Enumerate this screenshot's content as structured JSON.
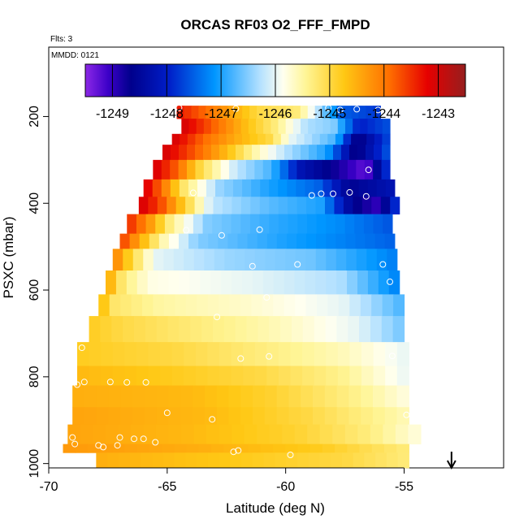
{
  "title": "ORCAS RF03 O2_FFF_FMPD",
  "flights_label": "Flts: 3",
  "date_label": "MMDD: 0121",
  "colorbar": {
    "ticks": [
      "-1249",
      "-1248",
      "-1247",
      "-1246",
      "-1245",
      "-1244",
      "-1243"
    ],
    "range": [
      -1249.5,
      -1242.5
    ]
  },
  "chart_data": {
    "type": "heatmap",
    "xlabel": "Latitude (deg N)",
    "ylabel": "PSXC (mbar)",
    "xlim": [
      -70,
      -50.8
    ],
    "ylim": [
      1010,
      40
    ],
    "y_reversed": true,
    "x_ticks": [
      "-70",
      "-65",
      "-60",
      "-55"
    ],
    "y_ticks": [
      "200",
      "400",
      "600",
      "800",
      "1000"
    ],
    "arrow_x": -53,
    "bands": [
      {
        "p_top": 175,
        "p_bot": 205,
        "lat0": -64.6,
        "lat1": -56.0,
        "stops": [
          [
            0,
            -1243.3
          ],
          [
            0.22,
            -1244.2
          ],
          [
            0.4,
            -1245.0
          ],
          [
            0.6,
            -1245.3
          ],
          [
            0.7,
            -1246.3
          ],
          [
            0.8,
            -1247.5
          ],
          [
            1,
            -1247.8
          ]
        ]
      },
      {
        "p_top": 205,
        "p_bot": 240,
        "lat0": -64.4,
        "lat1": -55.6,
        "stops": [
          [
            0,
            -1243.0
          ],
          [
            0.15,
            -1243.8
          ],
          [
            0.3,
            -1244.6
          ],
          [
            0.45,
            -1245.3
          ],
          [
            0.6,
            -1246.3
          ],
          [
            0.73,
            -1246.5
          ],
          [
            0.85,
            -1248.0
          ],
          [
            1,
            -1247.6
          ]
        ]
      },
      {
        "p_top": 240,
        "p_bot": 265,
        "lat0": -64.8,
        "lat1": -55.6,
        "stops": [
          [
            0,
            -1243.0
          ],
          [
            0.15,
            -1243.9
          ],
          [
            0.3,
            -1244.5
          ],
          [
            0.45,
            -1245.0
          ],
          [
            0.55,
            -1246.0
          ],
          [
            0.75,
            -1246.8
          ],
          [
            0.85,
            -1248.8
          ],
          [
            1,
            -1247.6
          ]
        ]
      },
      {
        "p_top": 265,
        "p_bot": 300,
        "lat0": -65.2,
        "lat1": -55.6,
        "stops": [
          [
            0,
            -1243.0
          ],
          [
            0.15,
            -1243.8
          ],
          [
            0.28,
            -1244.6
          ],
          [
            0.4,
            -1245.5
          ],
          [
            0.55,
            -1246.3
          ],
          [
            0.72,
            -1247.0
          ],
          [
            0.85,
            -1248.8
          ],
          [
            1,
            -1247.5
          ]
        ]
      },
      {
        "p_top": 300,
        "p_bot": 345,
        "lat0": -65.6,
        "lat1": -55.6,
        "stops": [
          [
            0,
            -1243.0
          ],
          [
            0.1,
            -1243.8
          ],
          [
            0.2,
            -1245.0
          ],
          [
            0.35,
            -1246.2
          ],
          [
            0.5,
            -1246.8
          ],
          [
            0.62,
            -1248.2
          ],
          [
            0.78,
            -1248.8
          ],
          [
            0.9,
            -1249.3
          ],
          [
            1,
            -1247.6
          ]
        ]
      },
      {
        "p_top": 345,
        "p_bot": 385,
        "lat0": -66.0,
        "lat1": -55.4,
        "stops": [
          [
            0,
            -1243.0
          ],
          [
            0.08,
            -1244.0
          ],
          [
            0.16,
            -1245.2
          ],
          [
            0.3,
            -1246.4
          ],
          [
            0.5,
            -1247.0
          ],
          [
            0.7,
            -1247.5
          ],
          [
            0.82,
            -1248.6
          ],
          [
            1,
            -1248.2
          ]
        ]
      },
      {
        "p_top": 385,
        "p_bot": 425,
        "lat0": -66.2,
        "lat1": -55.2,
        "stops": [
          [
            0,
            -1243.0
          ],
          [
            0.08,
            -1243.6
          ],
          [
            0.15,
            -1244.5
          ],
          [
            0.28,
            -1246.2
          ],
          [
            0.5,
            -1246.7
          ],
          [
            0.7,
            -1247.0
          ],
          [
            0.82,
            -1248.6
          ],
          [
            0.92,
            -1249.0
          ],
          [
            1,
            -1247.6
          ]
        ]
      },
      {
        "p_top": 425,
        "p_bot": 470,
        "lat0": -66.7,
        "lat1": -55.5,
        "stops": [
          [
            0,
            -1243.4
          ],
          [
            0.08,
            -1244.2
          ],
          [
            0.16,
            -1245.3
          ],
          [
            0.3,
            -1246.5
          ],
          [
            0.55,
            -1246.9
          ],
          [
            0.8,
            -1247.2
          ],
          [
            1,
            -1247.6
          ]
        ]
      },
      {
        "p_top": 470,
        "p_bot": 505,
        "lat0": -67.0,
        "lat1": -55.4,
        "stops": [
          [
            0,
            -1243.5
          ],
          [
            0.07,
            -1244.4
          ],
          [
            0.15,
            -1245.5
          ],
          [
            0.28,
            -1246.5
          ],
          [
            0.6,
            -1247.0
          ],
          [
            1,
            -1247.5
          ]
        ]
      },
      {
        "p_top": 505,
        "p_bot": 555,
        "lat0": -67.3,
        "lat1": -55.3,
        "stops": [
          [
            0,
            -1244.0
          ],
          [
            0.07,
            -1245.0
          ],
          [
            0.15,
            -1246.0
          ],
          [
            0.4,
            -1246.4
          ],
          [
            0.7,
            -1246.6
          ],
          [
            1,
            -1247.3
          ]
        ]
      },
      {
        "p_top": 555,
        "p_bot": 610,
        "lat0": -67.6,
        "lat1": -55.2,
        "stops": [
          [
            0,
            -1244.3
          ],
          [
            0.06,
            -1245.3
          ],
          [
            0.15,
            -1245.8
          ],
          [
            0.5,
            -1246.0
          ],
          [
            0.8,
            -1246.3
          ],
          [
            1,
            -1247.3
          ]
        ]
      },
      {
        "p_top": 610,
        "p_bot": 660,
        "lat0": -67.9,
        "lat1": -55.0,
        "stops": [
          [
            0,
            -1244.5
          ],
          [
            0.05,
            -1245.2
          ],
          [
            0.2,
            -1245.5
          ],
          [
            0.5,
            -1245.7
          ],
          [
            0.8,
            -1246.0
          ],
          [
            1,
            -1246.8
          ]
        ]
      },
      {
        "p_top": 660,
        "p_bot": 720,
        "lat0": -68.3,
        "lat1": -55.0,
        "stops": [
          [
            0,
            -1244.8
          ],
          [
            0.1,
            -1245.0
          ],
          [
            0.35,
            -1245.3
          ],
          [
            0.6,
            -1245.6
          ],
          [
            0.85,
            -1246.0
          ],
          [
            1,
            -1246.6
          ]
        ]
      },
      {
        "p_top": 720,
        "p_bot": 775,
        "lat0": -68.8,
        "lat1": -54.8,
        "stops": [
          [
            0,
            -1244.8
          ],
          [
            0.3,
            -1245.0
          ],
          [
            0.55,
            -1245.3
          ],
          [
            0.8,
            -1245.6
          ],
          [
            1,
            -1246.0
          ]
        ]
      },
      {
        "p_top": 775,
        "p_bot": 820,
        "lat0": -68.8,
        "lat1": -54.8,
        "stops": [
          [
            0,
            -1244.6
          ],
          [
            0.3,
            -1244.8
          ],
          [
            0.55,
            -1245.0
          ],
          [
            0.8,
            -1245.4
          ],
          [
            1,
            -1246.0
          ]
        ]
      },
      {
        "p_top": 820,
        "p_bot": 870,
        "lat0": -69.0,
        "lat1": -54.8,
        "stops": [
          [
            0,
            -1244.5
          ],
          [
            0.35,
            -1244.6
          ],
          [
            0.6,
            -1244.9
          ],
          [
            0.85,
            -1245.4
          ],
          [
            1,
            -1245.8
          ]
        ]
      },
      {
        "p_top": 870,
        "p_bot": 910,
        "lat0": -69.0,
        "lat1": -54.8,
        "stops": [
          [
            0,
            -1244.4
          ],
          [
            0.4,
            -1244.6
          ],
          [
            0.7,
            -1245.0
          ],
          [
            1,
            -1245.6
          ]
        ]
      },
      {
        "p_top": 910,
        "p_bot": 955,
        "lat0": -69.2,
        "lat1": -54.3,
        "stops": [
          [
            0,
            -1244.4
          ],
          [
            0.35,
            -1244.6
          ],
          [
            0.65,
            -1244.9
          ],
          [
            0.85,
            -1245.3
          ],
          [
            1,
            -1245.8
          ]
        ]
      },
      {
        "p_top": 955,
        "p_bot": 975,
        "lat0": -69.4,
        "lat1": -54.8,
        "stops": [
          [
            0,
            -1244.3
          ],
          [
            0.4,
            -1244.5
          ],
          [
            0.75,
            -1244.8
          ],
          [
            1,
            -1245.3
          ]
        ]
      },
      {
        "p_top": 975,
        "p_bot": 1010,
        "lat0": -68.0,
        "lat1": -54.8,
        "stops": [
          [
            0,
            -1244.5
          ],
          [
            0.5,
            -1244.8
          ],
          [
            0.8,
            -1245.0
          ],
          [
            1,
            -1245.3
          ]
        ]
      }
    ],
    "points": [
      [
        -64.5,
        180
      ],
      [
        -62.1,
        182
      ],
      [
        -58.2,
        180
      ],
      [
        -57.7,
        185
      ],
      [
        -57.0,
        183
      ],
      [
        -56.1,
        185
      ],
      [
        -63.9,
        376
      ],
      [
        -58.9,
        382
      ],
      [
        -58.5,
        378
      ],
      [
        -58.0,
        378
      ],
      [
        -57.3,
        375
      ],
      [
        -56.6,
        384
      ],
      [
        -56.5,
        323
      ],
      [
        -64.2,
        462
      ],
      [
        -62.7,
        474
      ],
      [
        -61.1,
        461
      ],
      [
        -61.4,
        545
      ],
      [
        -59.5,
        541
      ],
      [
        -55.9,
        541
      ],
      [
        -55.6,
        581
      ],
      [
        -60.8,
        617
      ],
      [
        -62.9,
        662
      ],
      [
        -68.6,
        733
      ],
      [
        -61.9,
        758
      ],
      [
        -60.7,
        753
      ],
      [
        -55.5,
        752
      ],
      [
        -68.5,
        812
      ],
      [
        -67.4,
        812
      ],
      [
        -66.7,
        813
      ],
      [
        -65.9,
        813
      ],
      [
        -68.8,
        818
      ],
      [
        -65.0,
        883
      ],
      [
        -63.1,
        898
      ],
      [
        -54.9,
        888
      ],
      [
        -69.0,
        940
      ],
      [
        -68.9,
        955
      ],
      [
        -67.9,
        958
      ],
      [
        -67.7,
        962
      ],
      [
        -67.0,
        940
      ],
      [
        -67.1,
        958
      ],
      [
        -66.4,
        943
      ],
      [
        -66.0,
        943
      ],
      [
        -65.5,
        951
      ],
      [
        -62.2,
        973
      ],
      [
        -62.0,
        970
      ],
      [
        -59.8,
        980
      ]
    ]
  }
}
